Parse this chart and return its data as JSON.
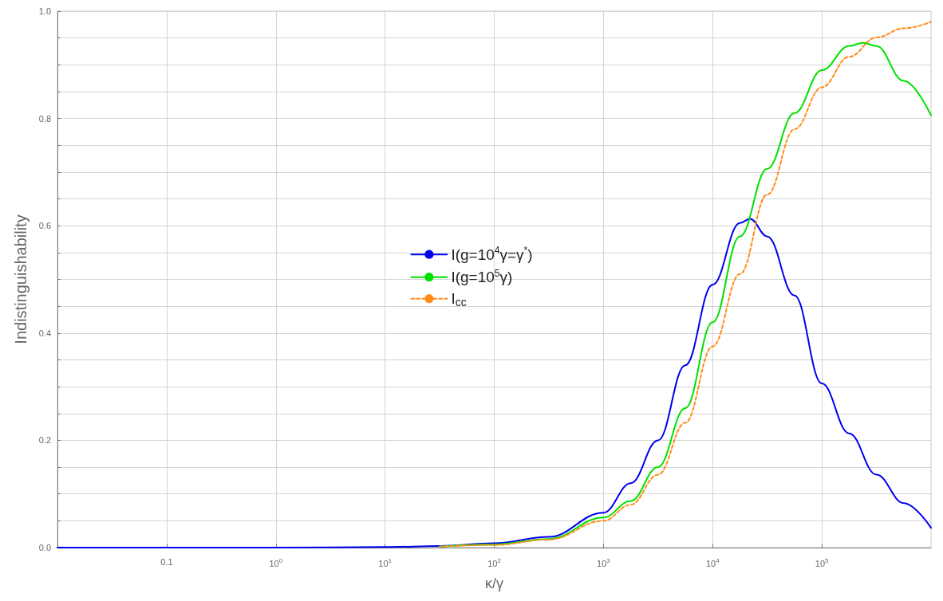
{
  "chart_data": {
    "type": "line",
    "xlabel": "κ/γ",
    "ylabel": "Indistinguishability",
    "log": "x",
    "xlim": [
      0.01,
      1000000
    ],
    "ylim": [
      0,
      1
    ],
    "xticks": [
      0.1,
      {
        "value": 1,
        "label": "10$^{0}$"
      },
      {
        "value": 10,
        "label": "10$^{1}$"
      },
      {
        "value": 100,
        "label": "10$^{2}$"
      },
      {
        "value": 1000,
        "label": "10$^{3}$"
      },
      {
        "value": 10000,
        "label": "10$^{4}$"
      },
      {
        "value": 100000,
        "label": "10$^{5}$"
      }
    ],
    "yticks": [
      {
        "value": 0,
        "label": "0.0"
      },
      {
        "value": 0.05,
        "label": null
      },
      {
        "value": 0.1,
        "label": null
      },
      {
        "value": 0.15,
        "label": null
      },
      0.2,
      {
        "value": 0.25,
        "label": null
      },
      {
        "value": 0.3,
        "label": null
      },
      {
        "value": 0.35,
        "label": null
      },
      0.4,
      {
        "value": 0.45,
        "label": null
      },
      {
        "value": 0.5,
        "label": null
      },
      {
        "value": 0.55,
        "label": null
      },
      0.6,
      {
        "value": 0.65,
        "label": null
      },
      {
        "value": 0.7,
        "label": null
      },
      {
        "value": 0.75,
        "label": null
      },
      0.8,
      {
        "value": 0.85,
        "label": null
      },
      {
        "value": 0.9,
        "label": null
      },
      {
        "value": 0.95,
        "label": null
      },
      {
        "value": 1,
        "label": "1.0"
      }
    ],
    "grid": true,
    "legend": "center",
    "marker": "none",
    "series": [
      {
        "name": "I(g=10$^{4}$γ=γ$^{*}$)",
        "color": "#0000f0",
        "line_style": "solid",
        "x": [
          0.01,
          0.1,
          1,
          10,
          31.6,
          100,
          316,
          1000,
          1778,
          3162,
          5623,
          10000,
          17783,
          22000,
          31623,
          56234,
          100000,
          177828,
          316228,
          562341,
          1000000
        ],
        "values": [
          0,
          0,
          0,
          0.001,
          0.003,
          0.008,
          0.02,
          0.065,
          0.12,
          0.2,
          0.34,
          0.49,
          0.605,
          0.613,
          0.58,
          0.47,
          0.306,
          0.213,
          0.136,
          0.083,
          0.037
        ]
      },
      {
        "name": "I(g=10$^{5}$γ)",
        "color": "#00e000",
        "line_style": "solid",
        "x": [
          31.6,
          100,
          316,
          1000,
          1778,
          3162,
          5623,
          10000,
          17783,
          31623,
          56234,
          100000,
          177828,
          240000,
          316228,
          562341,
          1000000
        ],
        "values": [
          0.002,
          0.006,
          0.016,
          0.056,
          0.087,
          0.15,
          0.26,
          0.42,
          0.58,
          0.706,
          0.81,
          0.89,
          0.935,
          0.941,
          0.935,
          0.87,
          0.806
        ]
      },
      {
        "name": "I$_{cc}$",
        "color": "#ff8c1a",
        "line_style": "dashed",
        "x": [
          31.6,
          100,
          316,
          1000,
          1778,
          3162,
          5623,
          10000,
          17783,
          31623,
          56234,
          100000,
          177828,
          316228,
          562341,
          1000000
        ],
        "values": [
          0.002,
          0.005,
          0.015,
          0.05,
          0.08,
          0.136,
          0.233,
          0.375,
          0.51,
          0.658,
          0.78,
          0.858,
          0.915,
          0.951,
          0.968,
          0.98
        ]
      }
    ]
  }
}
